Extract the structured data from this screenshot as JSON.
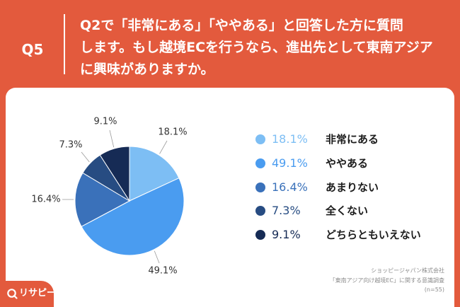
{
  "theme": {
    "background": "#E35A3D",
    "panel": "#FFFFFF"
  },
  "header": {
    "question_number": "Q5"
  },
  "chart_data": {
    "type": "pie",
    "title_lines": [
      "Q2で「非常にある」「ややある」と回答した方に質問",
      "します。もし越境ECを行うなら、進出先として東南アジア",
      "に興味がありますか。"
    ],
    "categories": [
      "非常にある",
      "ややある",
      "あまりない",
      "全くない",
      "どちらともいえない"
    ],
    "values": [
      18.1,
      49.1,
      16.4,
      7.3,
      9.1
    ],
    "value_labels": [
      "18.1%",
      "49.1%",
      "16.4%",
      "7.3%",
      "9.1%"
    ],
    "colors": [
      "#7DBEF4",
      "#4A9CF0",
      "#3A71BA",
      "#274C82",
      "#162B55"
    ],
    "legend_position": "right"
  },
  "source": {
    "lines": [
      "ショッピージャパン株式会社",
      "「東南アジア向け越境EC」に関する意識調査",
      "(n=55)"
    ]
  },
  "brand": {
    "logo_text": "リサピー",
    "logo_icon": "magnifier-icon"
  }
}
